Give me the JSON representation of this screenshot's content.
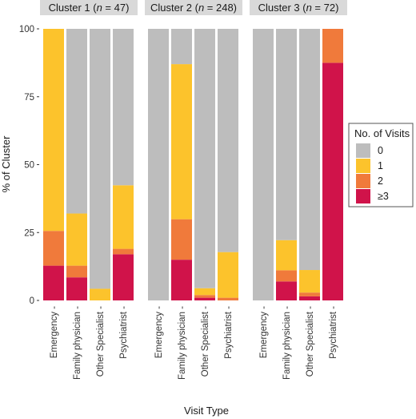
{
  "chart_data": {
    "type": "bar",
    "stacked": true,
    "xlabel": "Visit Type",
    "ylabel": "% of Cluster",
    "ylim": [
      0,
      100
    ],
    "yticks": [
      0,
      25,
      50,
      75,
      100
    ],
    "categories": [
      "Emergency",
      "Family physician",
      "Other Specialist",
      "Psychiatrist"
    ],
    "tick_suffix": " -",
    "panels": [
      {
        "label": "Cluster 1 (n = 47)",
        "label_prefix": "Cluster 1 (",
        "label_italic": "n",
        "label_suffix": " = 47)"
      },
      {
        "label": "Cluster 2 (n = 248)",
        "label_prefix": "Cluster 2 (",
        "label_italic": "n",
        "label_suffix": " = 248)"
      },
      {
        "label": "Cluster 3 (n = 72)",
        "label_prefix": "Cluster 3 (",
        "label_italic": "n",
        "label_suffix": " = 72)"
      }
    ],
    "legend": {
      "title": "No. of Visits",
      "placement": "right",
      "entries": [
        "0",
        "1",
        "2",
        "≥3"
      ]
    },
    "colors": {
      "0": "#bdbdbd",
      "1": "#fcc32c",
      "2": "#f07a3b",
      "≥3": "#d0134a",
      "strip": "#d9d9d9"
    },
    "series": [
      {
        "name": "≥3",
        "values": [
          [
            12.8,
            8.5,
            0,
            17.0
          ],
          [
            0,
            15.0,
            1.0,
            0
          ],
          [
            0,
            7.0,
            1.5,
            87.5
          ]
        ]
      },
      {
        "name": "2",
        "values": [
          [
            12.8,
            4.3,
            0,
            2.0
          ],
          [
            0,
            14.9,
            1.0,
            1.0
          ],
          [
            0,
            4.1,
            1.4,
            12.5
          ]
        ]
      },
      {
        "name": "1",
        "values": [
          [
            74.4,
            19.2,
            4.3,
            23.4
          ],
          [
            0,
            57.1,
            2.5,
            16.8
          ],
          [
            0,
            11.1,
            8.3,
            0
          ]
        ]
      },
      {
        "name": "0",
        "values": [
          [
            0,
            68.0,
            95.7,
            57.6
          ],
          [
            100,
            13.0,
            95.5,
            82.2
          ],
          [
            100,
            77.8,
            88.8,
            0
          ]
        ]
      }
    ],
    "grid": false,
    "background": "white"
  }
}
